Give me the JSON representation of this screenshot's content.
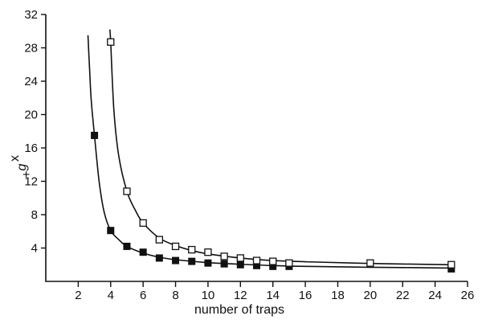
{
  "chart_data": {
    "type": "scatter",
    "xlabel": "number of traps",
    "ylabel_main": "g",
    "ylabel_sup": "x",
    "ylabel_sub": "+",
    "xlim": [
      0,
      26
    ],
    "ylim": [
      0,
      32
    ],
    "xticks": [
      2,
      4,
      6,
      8,
      10,
      12,
      14,
      16,
      18,
      20,
      22,
      24,
      26
    ],
    "yticks": [
      4,
      8,
      12,
      16,
      20,
      24,
      28,
      32
    ],
    "grid": false,
    "series": [
      {
        "marker": "filled-square",
        "color": "#111111",
        "points": [
          {
            "x": 3,
            "y": 17.5
          },
          {
            "x": 4,
            "y": 6.1
          },
          {
            "x": 5,
            "y": 4.2
          },
          {
            "x": 6,
            "y": 3.5
          },
          {
            "x": 7,
            "y": 2.8
          },
          {
            "x": 8,
            "y": 2.5
          },
          {
            "x": 9,
            "y": 2.4
          },
          {
            "x": 10,
            "y": 2.2
          },
          {
            "x": 11,
            "y": 2.1
          },
          {
            "x": 12,
            "y": 2.0
          },
          {
            "x": 13,
            "y": 1.9
          },
          {
            "x": 14,
            "y": 1.8
          },
          {
            "x": 15,
            "y": 1.8
          },
          {
            "x": 25,
            "y": 1.5
          }
        ],
        "fit_curve": [
          {
            "x": 2.6,
            "y": 29.5
          },
          {
            "x": 2.7,
            "y": 25.5
          },
          {
            "x": 2.8,
            "y": 21.8
          },
          {
            "x": 3.0,
            "y": 17.5
          },
          {
            "x": 3.3,
            "y": 11.8
          },
          {
            "x": 3.6,
            "y": 8.3
          },
          {
            "x": 4.0,
            "y": 6.1
          },
          {
            "x": 4.5,
            "y": 5.0
          },
          {
            "x": 5.0,
            "y": 4.2
          },
          {
            "x": 6.0,
            "y": 3.4
          },
          {
            "x": 7.0,
            "y": 2.9
          },
          {
            "x": 8.0,
            "y": 2.6
          },
          {
            "x": 10.0,
            "y": 2.25
          },
          {
            "x": 12.0,
            "y": 2.05
          },
          {
            "x": 14.0,
            "y": 1.9
          },
          {
            "x": 16.0,
            "y": 1.8
          },
          {
            "x": 20.0,
            "y": 1.7
          },
          {
            "x": 25.0,
            "y": 1.6
          }
        ]
      },
      {
        "marker": "open-square",
        "color": "#111111",
        "points": [
          {
            "x": 4,
            "y": 28.7
          },
          {
            "x": 5,
            "y": 10.8
          },
          {
            "x": 6,
            "y": 7.0
          },
          {
            "x": 7,
            "y": 5.0
          },
          {
            "x": 8,
            "y": 4.2
          },
          {
            "x": 9,
            "y": 3.8
          },
          {
            "x": 10,
            "y": 3.5
          },
          {
            "x": 11,
            "y": 3.0
          },
          {
            "x": 12,
            "y": 2.8
          },
          {
            "x": 13,
            "y": 2.5
          },
          {
            "x": 14,
            "y": 2.4
          },
          {
            "x": 15,
            "y": 2.2
          },
          {
            "x": 20,
            "y": 2.2
          },
          {
            "x": 25,
            "y": 2.0
          }
        ],
        "fit_curve": [
          {
            "x": 3.95,
            "y": 30.2
          },
          {
            "x": 4.0,
            "y": 28.7
          },
          {
            "x": 4.2,
            "y": 20.5
          },
          {
            "x": 4.5,
            "y": 15.0
          },
          {
            "x": 5.0,
            "y": 10.8
          },
          {
            "x": 5.5,
            "y": 8.6
          },
          {
            "x": 6.0,
            "y": 7.0
          },
          {
            "x": 7.0,
            "y": 5.2
          },
          {
            "x": 8.0,
            "y": 4.3
          },
          {
            "x": 9.0,
            "y": 3.7
          },
          {
            "x": 10.0,
            "y": 3.3
          },
          {
            "x": 12.0,
            "y": 2.8
          },
          {
            "x": 14.0,
            "y": 2.5
          },
          {
            "x": 16.0,
            "y": 2.35
          },
          {
            "x": 20.0,
            "y": 2.15
          },
          {
            "x": 25.0,
            "y": 2.0
          }
        ]
      }
    ]
  }
}
